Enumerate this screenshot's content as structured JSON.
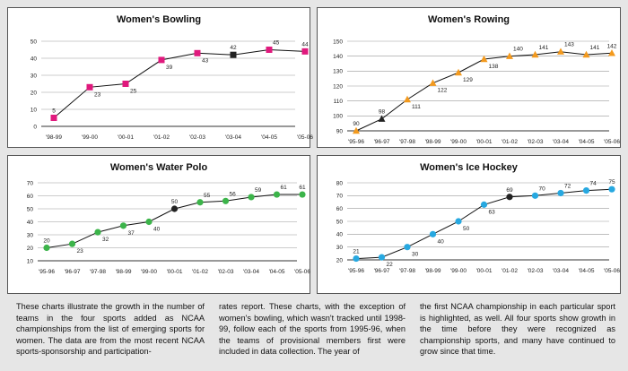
{
  "chart_data": [
    {
      "type": "line",
      "title": "Women's Bowling",
      "categories": [
        "'98-99",
        "'99-00",
        "'00-01",
        "'01-02",
        "'02-03",
        "'03-04",
        "'04-05",
        "'05-06"
      ],
      "values": [
        5,
        23,
        25,
        39,
        43,
        42,
        45,
        44
      ],
      "value_labels": [
        "5",
        "23",
        "25",
        "39",
        "43",
        "42",
        "45",
        "44"
      ],
      "ylim": [
        0,
        50
      ],
      "yticks": [
        0,
        10,
        20,
        30,
        40,
        50
      ],
      "first_championship_index": 5,
      "marker": "square",
      "color": "#e0197d",
      "grid": true
    },
    {
      "type": "line",
      "title": "Women's Rowing",
      "categories": [
        "'95-96",
        "'96-97",
        "'97-98",
        "'98-99",
        "'99-00",
        "'00-01",
        "'01-02",
        "'02-03",
        "'03-04",
        "'04-05",
        "'05-06"
      ],
      "values": [
        90,
        98,
        111,
        122,
        129,
        138,
        140,
        141,
        143,
        141,
        142
      ],
      "value_labels": [
        "90",
        "98",
        "111",
        "122",
        "129",
        "138",
        "140",
        "141",
        "143",
        "141",
        "142"
      ],
      "ylim": [
        90,
        150
      ],
      "yticks": [
        90,
        100,
        110,
        120,
        130,
        140,
        150
      ],
      "first_championship_index": 1,
      "marker": "triangle",
      "color": "#f39a1e",
      "grid": true
    },
    {
      "type": "line",
      "title": "Women's Water Polo",
      "categories": [
        "'95-96",
        "'96-97",
        "'97-98",
        "'98-99",
        "'99-00",
        "'00-01",
        "'01-02",
        "'02-03",
        "'03-04",
        "'04-05",
        "'05-06"
      ],
      "values": [
        20,
        23,
        32,
        37,
        40,
        50,
        55,
        56,
        59,
        61,
        61
      ],
      "value_labels": [
        "20",
        "23",
        "32",
        "37",
        "40",
        "50",
        "55",
        "56",
        "59",
        "61",
        "61"
      ],
      "ylim": [
        10,
        70
      ],
      "yticks": [
        10,
        20,
        30,
        40,
        50,
        60,
        70
      ],
      "first_championship_index": 5,
      "marker": "circle",
      "color": "#3cb44a",
      "grid": true
    },
    {
      "type": "line",
      "title": "Women's Ice Hockey",
      "categories": [
        "'95-96",
        "'96-97",
        "'97-98",
        "'98-99",
        "'99-00",
        "'00-01",
        "'01-02",
        "'02-03",
        "'03-04",
        "'04-05",
        "'05-06"
      ],
      "values": [
        21,
        22,
        30,
        40,
        50,
        63,
        69,
        70,
        72,
        74,
        75
      ],
      "value_labels": [
        "21",
        "22",
        "30",
        "40",
        "50",
        "63",
        "69",
        "70",
        "72",
        "74",
        "75"
      ],
      "ylim": [
        20,
        80
      ],
      "yticks": [
        20,
        30,
        40,
        50,
        60,
        70,
        80
      ],
      "first_championship_index": 6,
      "marker": "circle",
      "color": "#27a8e0",
      "grid": true
    }
  ],
  "caption": {
    "col1": "These charts illustrate the growth in the number of teams in the four sports added as NCAA championships from the list of emerging sports for women. The data are from the most recent NCAA sports-sponsorship and participation-",
    "col2": "rates report. These charts, with the exception of women's bowling, which wasn't tracked until 1998-99, follow each of the sports from 1995-96, when the teams of provisional members first were included in data collection. The year of",
    "col3": "the first NCAA championship in each particular sport is highlighted, as well. All four sports show growth in the time before they were recognized as championship sports, and many have continued to grow since that time."
  }
}
